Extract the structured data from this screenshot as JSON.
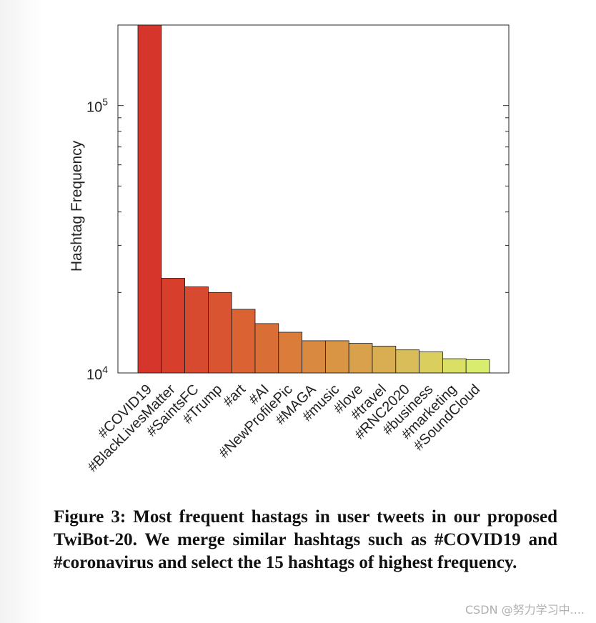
{
  "chart_data": {
    "type": "bar",
    "ylabel": "Hashtag Frequency",
    "yscale": "log",
    "ylim": [
      10000,
      200000
    ],
    "yticks": [
      {
        "base": "10",
        "exp": "4",
        "value": 10000
      },
      {
        "base": "10",
        "exp": "5",
        "value": 100000
      }
    ],
    "categories": [
      "#COVID19",
      "#BlackLivesMatter",
      "#SaintsFC",
      "#Trump",
      "#art",
      "#AI",
      "#NewProfilePic",
      "#MAGA",
      "#music",
      "#love",
      "#travel",
      "#RNC2020",
      "#business",
      "#marketing",
      "#SoundCloud"
    ],
    "values": [
      200000,
      22600,
      21000,
      20000,
      17300,
      15300,
      14200,
      13200,
      13200,
      12900,
      12600,
      12200,
      12000,
      11300,
      11200
    ],
    "colors": [
      "#d6352b",
      "#d73f2c",
      "#d84a2f",
      "#d95531",
      "#da6233",
      "#da6e37",
      "#db7c3b",
      "#d98940",
      "#d99444",
      "#daa14c",
      "#d9ad52",
      "#d9bd58",
      "#dace5f",
      "#dadf66",
      "#d9ec6e"
    ],
    "grid": false
  },
  "caption": {
    "text": "Figure 3: Most frequent hastags in user tweets in our proposed TwiBot-20. We merge similar hashtags such as #COVID19 and #coronavirus and select the 15 hashtags of highest frequency."
  },
  "watermark": "CSDN @努力学习中...."
}
